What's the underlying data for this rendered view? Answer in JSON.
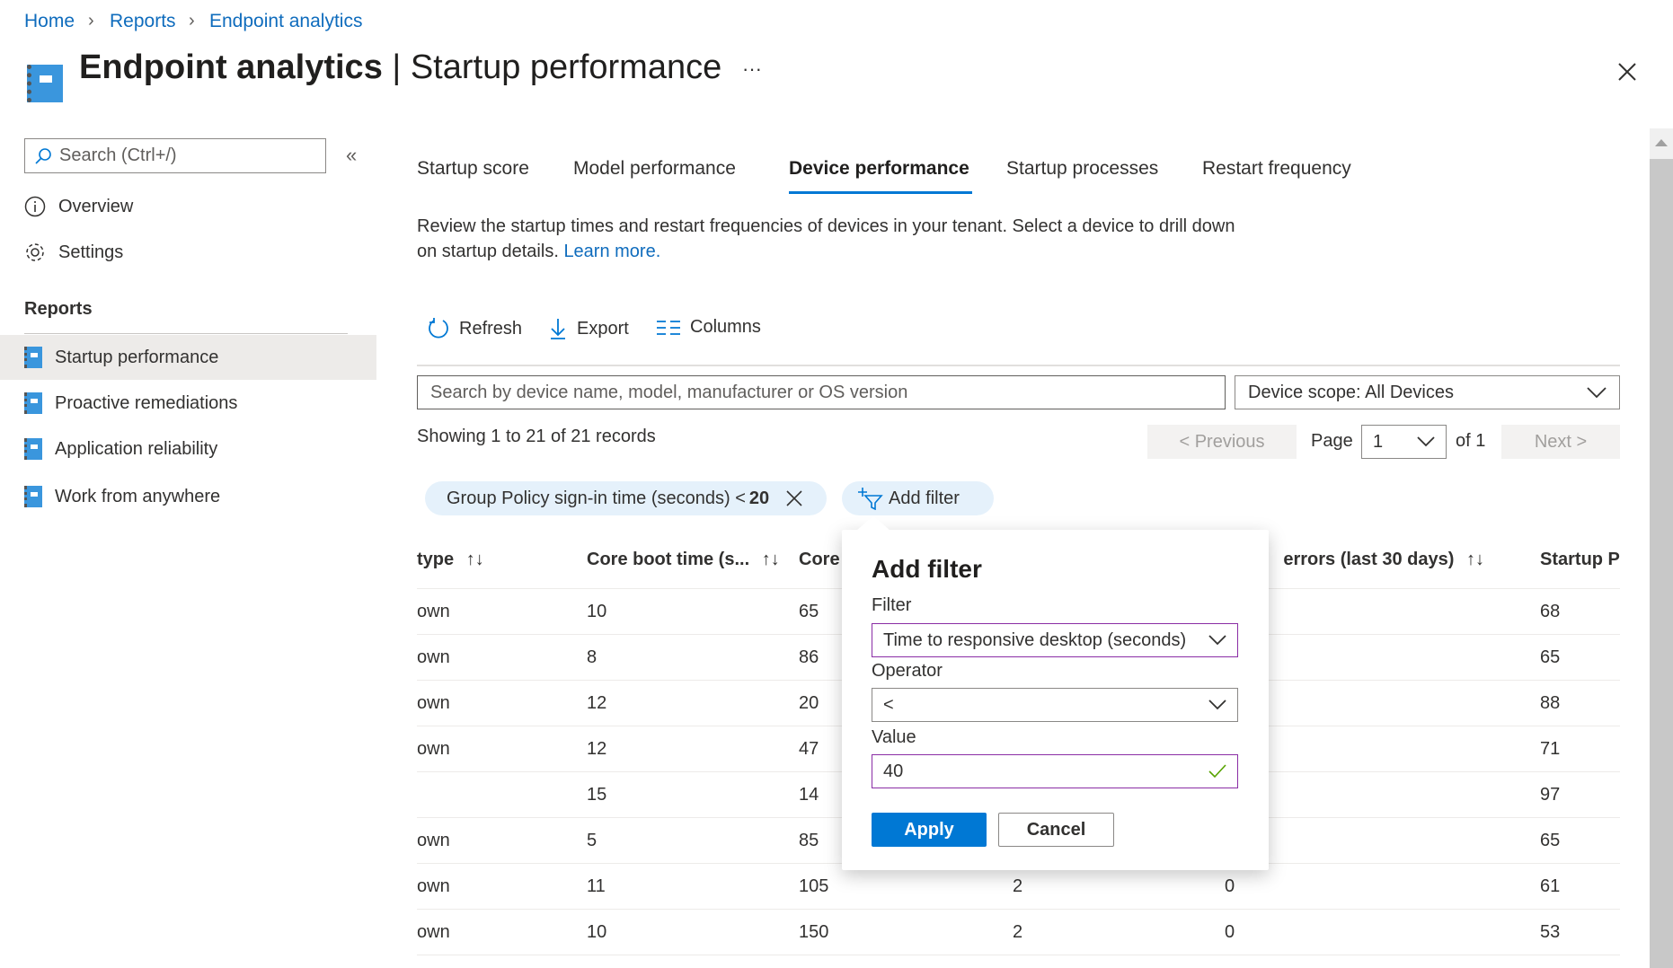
{
  "breadcrumb": [
    "Home",
    "Reports",
    "Endpoint analytics"
  ],
  "header": {
    "title_main": "Endpoint analytics",
    "title_sep": " | ",
    "title_sub": "Startup performance",
    "more": "···",
    "close_icon": "close-icon"
  },
  "sidebar": {
    "search_placeholder": "Search (Ctrl+/)",
    "collapse": "«",
    "items": [
      {
        "label": "Overview",
        "icon": "info-icon"
      },
      {
        "label": "Settings",
        "icon": "gear-icon"
      }
    ],
    "section": "Reports",
    "reports": [
      {
        "label": "Startup performance",
        "selected": true
      },
      {
        "label": "Proactive remediations"
      },
      {
        "label": "Application reliability"
      },
      {
        "label": "Work from anywhere"
      }
    ]
  },
  "tabs": [
    {
      "label": "Startup score"
    },
    {
      "label": "Model performance"
    },
    {
      "label": "Device performance",
      "active": true
    },
    {
      "label": "Startup processes"
    },
    {
      "label": "Restart frequency"
    }
  ],
  "description": {
    "line1": "Review the startup times and restart frequencies of devices in your tenant. Select a device to drill down",
    "line2": "on startup details. ",
    "link": "Learn more."
  },
  "toolbar": {
    "refresh": "Refresh",
    "export": "Export",
    "columns": "Columns"
  },
  "search": {
    "placeholder": "Search by device name, model, manufacturer or OS version"
  },
  "scope": {
    "value": "Device scope: All Devices"
  },
  "records": "Showing 1 to 21 of 21 records",
  "pagination": {
    "previous": "< Previous",
    "page_label": "Page",
    "page": "1",
    "of": "of 1",
    "next": "Next >"
  },
  "filters": {
    "active": {
      "text": "Group Policy sign-in time (seconds) < ",
      "value": "20"
    },
    "add": "Add filter"
  },
  "table": {
    "headers": [
      "type",
      "Core boot time (s...",
      "Core",
      "errors (last 30 days)",
      "Startup P"
    ],
    "rows": [
      {
        "c1": "own",
        "c2": "10",
        "c3": "65",
        "c6": "68"
      },
      {
        "c1": "own",
        "c2": "8",
        "c3": "86",
        "c6": "65"
      },
      {
        "c1": "own",
        "c2": "12",
        "c3": "20",
        "c6": "88"
      },
      {
        "c1": "own",
        "c2": "12",
        "c3": "47",
        "c6": "71"
      },
      {
        "c1": "",
        "c2": "15",
        "c3": "14",
        "c6": "97"
      },
      {
        "c1": "own",
        "c2": "5",
        "c3": "85",
        "c6": "65"
      },
      {
        "c1": "own",
        "c2": "11",
        "c3": "105",
        "c4": "2",
        "c5": "0",
        "c6": "61"
      },
      {
        "c1": "own",
        "c2": "10",
        "c3": "150",
        "c4": "2",
        "c5": "0",
        "c6": "53"
      }
    ]
  },
  "popup": {
    "title": "Add filter",
    "filter_label": "Filter",
    "filter_value": "Time to responsive desktop (seconds)",
    "operator_label": "Operator",
    "operator_value": "<",
    "value_label": "Value",
    "value": "40",
    "apply": "Apply",
    "cancel": "Cancel"
  },
  "colors": {
    "accent": "#0078d4",
    "selected_bg": "#edebe9",
    "pill_bg": "#e5f1fb",
    "focus_border": "#8a2da5",
    "valid": "#57a300"
  }
}
